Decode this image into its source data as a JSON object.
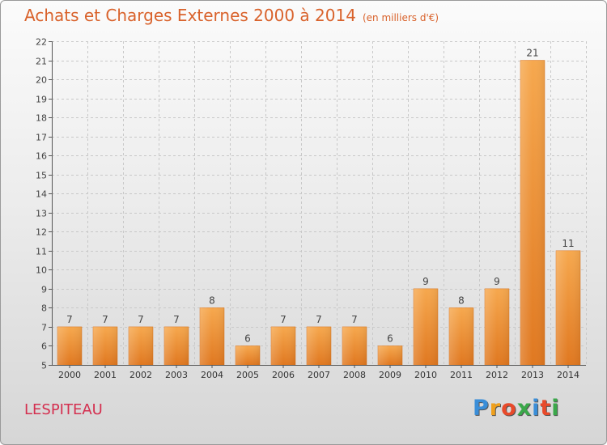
{
  "header": {
    "title": "Achats et Charges Externes 2000 à 2014",
    "subtitle": "(en milliers d'€)"
  },
  "footer": {
    "place": "LESPITEAU",
    "logo": "Proxiti"
  },
  "colors": {
    "title": "#d9622b",
    "place": "#d42f4f",
    "bar_light": "#f6a84e",
    "bar_dark": "#e07820"
  },
  "chart_data": {
    "type": "bar",
    "title": "Achats et Charges Externes 2000 à 2014",
    "subtitle": "(en milliers d'€)",
    "categories": [
      "2000",
      "2001",
      "2002",
      "2003",
      "2004",
      "2005",
      "2006",
      "2007",
      "2008",
      "2009",
      "2010",
      "2011",
      "2012",
      "2013",
      "2014"
    ],
    "values": [
      7,
      7,
      7,
      7,
      8,
      6,
      7,
      7,
      7,
      6,
      9,
      8,
      9,
      21,
      11
    ],
    "ylim": [
      5,
      22
    ],
    "yticks": [
      5,
      6,
      7,
      8,
      9,
      10,
      11,
      12,
      13,
      14,
      15,
      16,
      17,
      18,
      19,
      20,
      21,
      22
    ],
    "grid": true
  }
}
